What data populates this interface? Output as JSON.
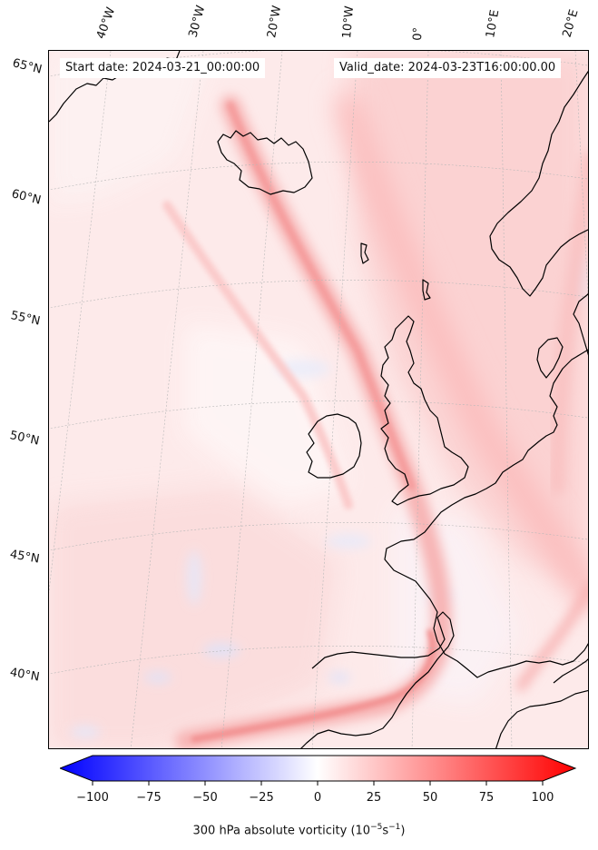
{
  "header": {
    "start_date": "Start date: 2024-03-21_00:00:00",
    "valid_date": "Valid_date: 2024-03-23T16:00:00.00"
  },
  "longitude_labels": [
    "40°W",
    "30°W",
    "20°W",
    "10°W",
    "0°",
    "10°E",
    "20°E"
  ],
  "latitude_labels": [
    "65°N",
    "60°N",
    "55°N",
    "50°N",
    "45°N",
    "40°N"
  ],
  "colorbar": {
    "ticks": [
      "−100",
      "−75",
      "−50",
      "−25",
      "0",
      "25",
      "50",
      "75",
      "100"
    ],
    "label_text": "300 hPa absolute vorticity (10",
    "label_sup1": "−5",
    "label_mid": "s",
    "label_sup2": "−1",
    "label_end": ")",
    "min_color": "#0000ff",
    "mid_color": "#ffffff",
    "max_color": "#ff0000"
  },
  "colors": {
    "background_field": "#fde4e4",
    "jet_streak": "#f8a5a5",
    "coastline": "#000000",
    "gridline": "#b0b0b0"
  }
}
